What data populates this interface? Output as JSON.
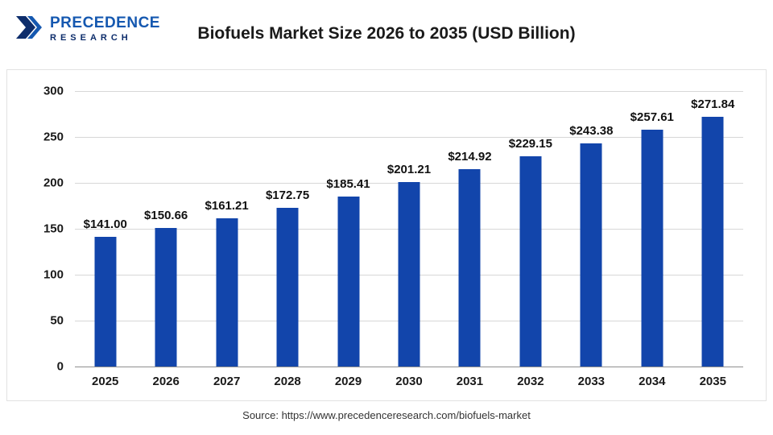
{
  "logo": {
    "name": "PRECEDENCE",
    "subname": "RESEARCH",
    "brand_color": "#1558b0",
    "brand_dark": "#0d2d6b"
  },
  "header": {
    "title": "Biofuels Market Size 2026 to 2035 (USD Billion)"
  },
  "footer": {
    "source": "Source: https://www.precedenceresearch.com/biofuels-market"
  },
  "chart_data": {
    "type": "bar",
    "title": "Biofuels Market Size 2026 to 2035 (USD Billion)",
    "categories": [
      "2025",
      "2026",
      "2027",
      "2028",
      "2029",
      "2030",
      "2031",
      "2032",
      "2033",
      "2034",
      "2035"
    ],
    "values": [
      141.0,
      150.66,
      161.21,
      172.75,
      185.41,
      201.21,
      214.92,
      229.15,
      243.38,
      257.61,
      271.84
    ],
    "value_labels": [
      "$141.00",
      "$150.66",
      "$161.21",
      "$172.75",
      "$185.41",
      "$201.21",
      "$214.92",
      "$229.15",
      "$243.38",
      "$257.61",
      "$271.84"
    ],
    "xlabel": "",
    "ylabel": "",
    "ylim": [
      0,
      300
    ],
    "yticks": [
      0,
      50,
      100,
      150,
      200,
      250,
      300
    ],
    "bar_color": "#1245ab",
    "grid": "horizontal",
    "legend_position": "none"
  }
}
